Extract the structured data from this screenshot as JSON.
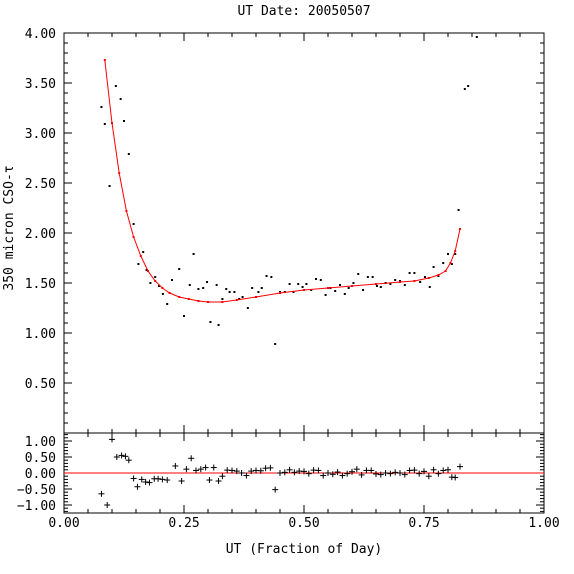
{
  "chart_data": [
    {
      "type": "scatter",
      "title": "UT Date: 20050507",
      "ylabel": "350 micron CSO-τ",
      "xlabel": "",
      "xlim": [
        0.0,
        1.0
      ],
      "ylim": [
        0.0,
        4.0
      ],
      "y_ticks": [
        "0.50",
        "1.00",
        "1.50",
        "2.00",
        "2.50",
        "3.00",
        "3.50",
        "4.00"
      ],
      "grid": false,
      "series": [
        {
          "marker": "dot",
          "color": "#000000",
          "points": [
            [
              0.078,
              3.26
            ],
            [
              0.085,
              3.09
            ],
            [
              0.095,
              2.47
            ],
            [
              0.108,
              3.47
            ],
            [
              0.118,
              3.34
            ],
            [
              0.125,
              3.12
            ],
            [
              0.135,
              2.79
            ],
            [
              0.145,
              2.09
            ],
            [
              0.155,
              1.69
            ],
            [
              0.165,
              1.81
            ],
            [
              0.172,
              1.63
            ],
            [
              0.18,
              1.5
            ],
            [
              0.19,
              1.56
            ],
            [
              0.198,
              1.47
            ],
            [
              0.206,
              1.39
            ],
            [
              0.215,
              1.29
            ],
            [
              0.225,
              1.53
            ],
            [
              0.24,
              1.64
            ],
            [
              0.25,
              1.17
            ],
            [
              0.262,
              1.48
            ],
            [
              0.27,
              1.79
            ],
            [
              0.28,
              1.44
            ],
            [
              0.29,
              1.45
            ],
            [
              0.298,
              1.51
            ],
            [
              0.305,
              1.11
            ],
            [
              0.318,
              1.48
            ],
            [
              0.322,
              1.08
            ],
            [
              0.33,
              1.34
            ],
            [
              0.338,
              1.44
            ],
            [
              0.345,
              1.41
            ],
            [
              0.355,
              1.41
            ],
            [
              0.365,
              1.34
            ],
            [
              0.372,
              1.36
            ],
            [
              0.383,
              1.25
            ],
            [
              0.392,
              1.45
            ],
            [
              0.405,
              1.41
            ],
            [
              0.412,
              1.45
            ],
            [
              0.422,
              1.57
            ],
            [
              0.432,
              1.56
            ],
            [
              0.44,
              0.89
            ],
            [
              0.45,
              1.41
            ],
            [
              0.46,
              1.41
            ],
            [
              0.47,
              1.49
            ],
            [
              0.478,
              1.41
            ],
            [
              0.488,
              1.49
            ],
            [
              0.497,
              1.46
            ],
            [
              0.505,
              1.49
            ],
            [
              0.515,
              1.43
            ],
            [
              0.525,
              1.54
            ],
            [
              0.535,
              1.53
            ],
            [
              0.545,
              1.38
            ],
            [
              0.555,
              1.45
            ],
            [
              0.565,
              1.42
            ],
            [
              0.575,
              1.48
            ],
            [
              0.585,
              1.39
            ],
            [
              0.593,
              1.45
            ],
            [
              0.603,
              1.5
            ],
            [
              0.613,
              1.59
            ],
            [
              0.623,
              1.43
            ],
            [
              0.633,
              1.56
            ],
            [
              0.643,
              1.56
            ],
            [
              0.652,
              1.47
            ],
            [
              0.66,
              1.46
            ],
            [
              0.67,
              1.5
            ],
            [
              0.68,
              1.49
            ],
            [
              0.69,
              1.53
            ],
            [
              0.7,
              1.52
            ],
            [
              0.71,
              1.48
            ],
            [
              0.72,
              1.6
            ],
            [
              0.73,
              1.6
            ],
            [
              0.742,
              1.51
            ],
            [
              0.752,
              1.56
            ],
            [
              0.762,
              1.46
            ],
            [
              0.77,
              1.66
            ],
            [
              0.78,
              1.57
            ],
            [
              0.79,
              1.7
            ],
            [
              0.8,
              1.79
            ],
            [
              0.808,
              1.69
            ],
            [
              0.815,
              1.79
            ],
            [
              0.822,
              2.23
            ],
            [
              0.835,
              3.44
            ],
            [
              0.842,
              3.47
            ],
            [
              0.86,
              3.96
            ]
          ]
        },
        {
          "marker": "line",
          "color": "#ff0000",
          "points": [
            [
              0.085,
              3.73
            ],
            [
              0.1,
              3.1
            ],
            [
              0.115,
              2.6
            ],
            [
              0.13,
              2.22
            ],
            [
              0.145,
              1.96
            ],
            [
              0.16,
              1.77
            ],
            [
              0.175,
              1.62
            ],
            [
              0.19,
              1.52
            ],
            [
              0.205,
              1.45
            ],
            [
              0.22,
              1.4
            ],
            [
              0.24,
              1.36
            ],
            [
              0.26,
              1.34
            ],
            [
              0.28,
              1.32
            ],
            [
              0.3,
              1.31
            ],
            [
              0.33,
              1.31
            ],
            [
              0.36,
              1.33
            ],
            [
              0.4,
              1.36
            ],
            [
              0.45,
              1.4
            ],
            [
              0.5,
              1.43
            ],
            [
              0.55,
              1.45
            ],
            [
              0.6,
              1.47
            ],
            [
              0.65,
              1.49
            ],
            [
              0.7,
              1.51
            ],
            [
              0.73,
              1.52
            ],
            [
              0.76,
              1.55
            ],
            [
              0.78,
              1.58
            ],
            [
              0.795,
              1.62
            ],
            [
              0.805,
              1.7
            ],
            [
              0.815,
              1.82
            ],
            [
              0.825,
              2.04
            ]
          ]
        }
      ]
    },
    {
      "type": "scatter",
      "title": "",
      "ylabel": "",
      "xlabel": "UT (Fraction of Day)",
      "xlim": [
        0.0,
        1.0
      ],
      "ylim": [
        -1.25,
        1.25
      ],
      "x_ticks": [
        "0.00",
        "0.25",
        "0.50",
        "0.75",
        "1.00"
      ],
      "y_ticks": [
        "−1.00",
        "−0.50",
        "0.00",
        "0.50",
        "1.00"
      ],
      "grid": false,
      "zero_line_color": "#ff0000",
      "series": [
        {
          "marker": "plus",
          "color": "#000000",
          "points": [
            [
              0.078,
              -0.65
            ],
            [
              0.09,
              -1.0
            ],
            [
              0.1,
              1.05
            ],
            [
              0.11,
              0.5
            ],
            [
              0.12,
              0.55
            ],
            [
              0.128,
              0.52
            ],
            [
              0.135,
              0.4
            ],
            [
              0.145,
              -0.17
            ],
            [
              0.153,
              -0.43
            ],
            [
              0.162,
              -0.2
            ],
            [
              0.17,
              -0.28
            ],
            [
              0.178,
              -0.3
            ],
            [
              0.188,
              -0.18
            ],
            [
              0.196,
              -0.18
            ],
            [
              0.205,
              -0.2
            ],
            [
              0.215,
              -0.22
            ],
            [
              0.232,
              0.22
            ],
            [
              0.245,
              -0.25
            ],
            [
              0.255,
              0.12
            ],
            [
              0.265,
              0.46
            ],
            [
              0.275,
              0.08
            ],
            [
              0.285,
              0.12
            ],
            [
              0.295,
              0.17
            ],
            [
              0.303,
              -0.22
            ],
            [
              0.312,
              0.17
            ],
            [
              0.322,
              -0.25
            ],
            [
              0.33,
              -0.1
            ],
            [
              0.34,
              0.09
            ],
            [
              0.35,
              0.08
            ],
            [
              0.36,
              0.06
            ],
            [
              0.37,
              0.0
            ],
            [
              0.38,
              -0.08
            ],
            [
              0.39,
              0.06
            ],
            [
              0.4,
              0.08
            ],
            [
              0.41,
              0.07
            ],
            [
              0.42,
              0.15
            ],
            [
              0.43,
              0.16
            ],
            [
              0.44,
              -0.52
            ],
            [
              0.45,
              0.0
            ],
            [
              0.46,
              0.02
            ],
            [
              0.47,
              0.1
            ],
            [
              0.48,
              0.02
            ],
            [
              0.49,
              0.06
            ],
            [
              0.5,
              0.05
            ],
            [
              0.51,
              -0.02
            ],
            [
              0.52,
              0.09
            ],
            [
              0.53,
              0.08
            ],
            [
              0.54,
              -0.08
            ],
            [
              0.55,
              0.0
            ],
            [
              0.56,
              -0.04
            ],
            [
              0.57,
              0.03
            ],
            [
              0.58,
              -0.08
            ],
            [
              0.59,
              -0.02
            ],
            [
              0.6,
              0.04
            ],
            [
              0.61,
              0.12
            ],
            [
              0.62,
              -0.06
            ],
            [
              0.63,
              0.08
            ],
            [
              0.64,
              0.08
            ],
            [
              0.65,
              -0.03
            ],
            [
              0.66,
              -0.05
            ],
            [
              0.67,
              0.0
            ],
            [
              0.68,
              -0.02
            ],
            [
              0.69,
              0.02
            ],
            [
              0.7,
              0.0
            ],
            [
              0.71,
              -0.05
            ],
            [
              0.72,
              0.08
            ],
            [
              0.73,
              0.09
            ],
            [
              0.74,
              -0.02
            ],
            [
              0.75,
              0.05
            ],
            [
              0.76,
              -0.1
            ],
            [
              0.77,
              0.1
            ],
            [
              0.78,
              -0.02
            ],
            [
              0.79,
              0.08
            ],
            [
              0.8,
              0.1
            ],
            [
              0.808,
              -0.13
            ],
            [
              0.815,
              -0.14
            ],
            [
              0.825,
              0.2
            ]
          ]
        }
      ]
    }
  ]
}
